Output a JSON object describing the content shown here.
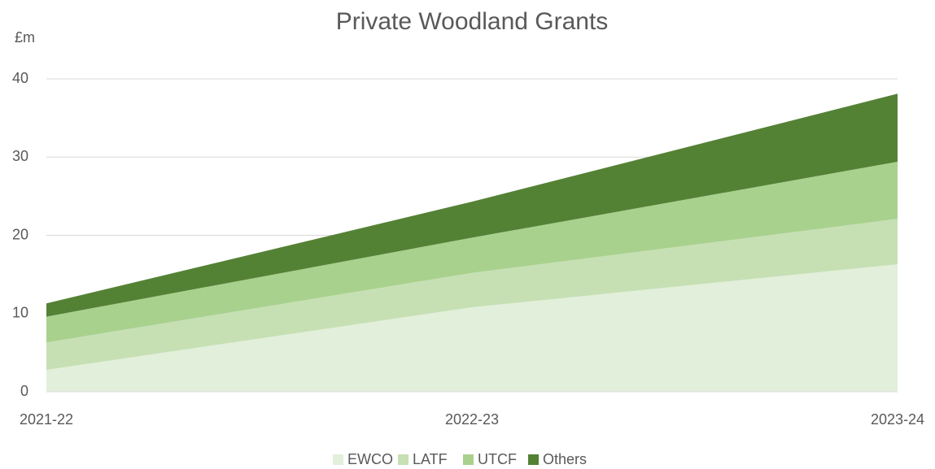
{
  "chart_data": {
    "type": "stacked_area",
    "title": "Private Woodland Grants",
    "y_label": "£m",
    "categories": [
      "2021-22",
      "2022-23",
      "2023-24"
    ],
    "series": [
      {
        "name": "EWCO",
        "color": "#e2efda",
        "values": [
          2.8,
          10.8,
          16.3
        ]
      },
      {
        "name": "LATF",
        "color": "#c6e0b4",
        "values": [
          3.5,
          4.4,
          5.8
        ]
      },
      {
        "name": "UTCF",
        "color": "#a9d18e",
        "values": [
          3.3,
          4.5,
          7.3
        ]
      },
      {
        "name": "Others",
        "color": "#548235",
        "values": [
          1.7,
          4.6,
          8.7
        ]
      }
    ],
    "ylim": [
      0,
      40
    ],
    "yticks": [
      0,
      10,
      20,
      30,
      40
    ],
    "grid": true,
    "legend": "bottom"
  }
}
